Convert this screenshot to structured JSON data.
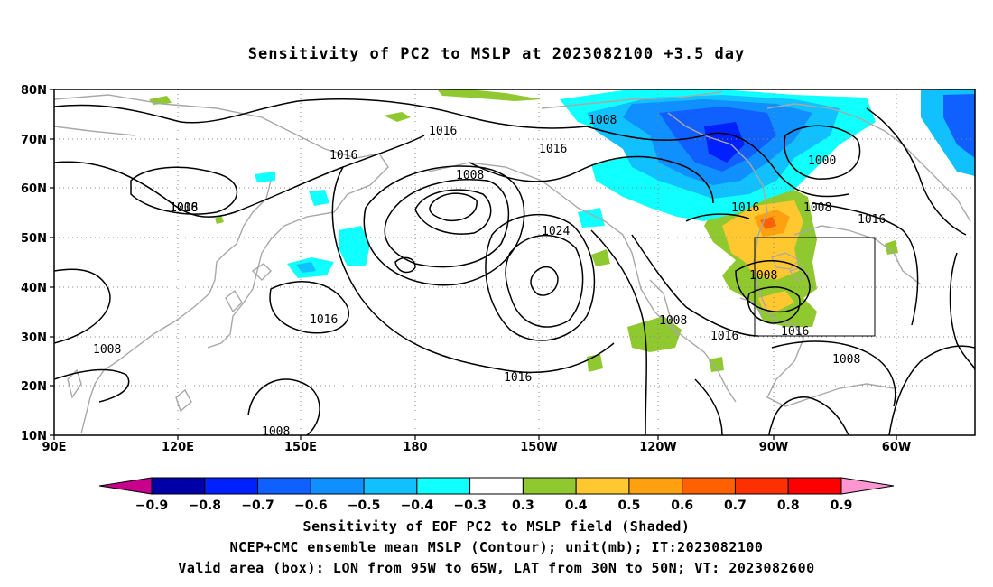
{
  "title": "Sensitivity of PC2 to MSLP at 2023082100 +3.5 day",
  "axes": {
    "lon_ticks": [
      "90E",
      "120E",
      "150E",
      "180",
      "150W",
      "120W",
      "90W",
      "60W"
    ],
    "lat_ticks": [
      "80N",
      "70N",
      "60N",
      "50N",
      "40N",
      "30N",
      "20N",
      "10N"
    ]
  },
  "contour_labels": [
    "1016",
    "1008",
    "1016",
    "1016",
    "1016",
    "1008",
    "1016",
    "1024",
    "1000",
    "1008",
    "1016",
    "1008",
    "1008",
    "1016",
    "1016",
    "1016",
    "1008",
    "1008",
    "1008"
  ],
  "valid_box": {
    "lon": [
      "95W",
      "65W"
    ],
    "lat": [
      "30N",
      "50N"
    ]
  },
  "colorbar": {
    "levels": [
      "-0.9",
      "-0.8",
      "-0.7",
      "-0.6",
      "-0.5",
      "-0.4",
      "-0.3",
      "0.3",
      "0.4",
      "0.5",
      "0.6",
      "0.7",
      "0.8",
      "0.9"
    ],
    "colors": [
      "#0000a8",
      "#0020ff",
      "#1060ff",
      "#1090ff",
      "#10c0ff",
      "#10ffff",
      "#ffffff",
      "#90c830",
      "#ffc830",
      "#ffa010",
      "#ff6000",
      "#ff3000",
      "#ff0000"
    ],
    "low_end_color": "#c8008c",
    "high_end_color": "#ff96d2"
  },
  "caption": [
    "Sensitivity of EOF PC2 to MSLP field (Shaded)",
    "NCEP+CMC ensemble mean MSLP (Contour); unit(mb); IT:2023082100",
    "Valid area (box): LON from 95W to 65W, LAT from 30N to 50N; VT: 2023082600"
  ]
}
